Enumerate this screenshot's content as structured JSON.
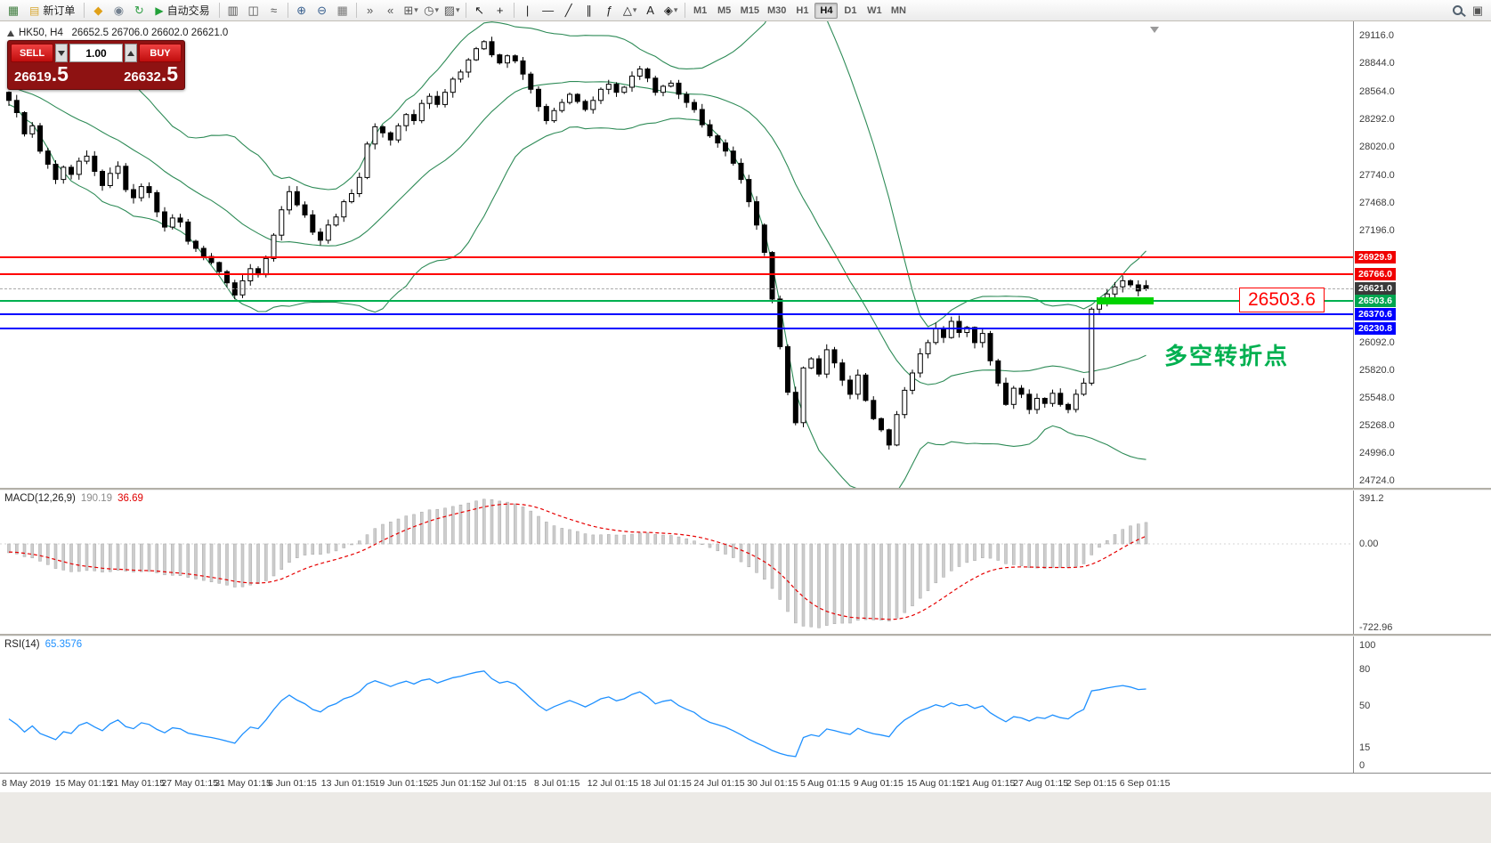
{
  "toolbar": {
    "caret_glyph": "▾",
    "active_timeframe": "H4",
    "items": [
      {
        "t": "icon",
        "name": "chart-window-icon",
        "g": "▦",
        "c": "#3f7d3f"
      },
      {
        "t": "button",
        "name": "new-order-button",
        "icon": "new-order-icon",
        "g": "▤",
        "gc": "#d7a52e",
        "label": "新订单"
      },
      {
        "t": "sep"
      },
      {
        "t": "icon",
        "name": "market-depth-icon",
        "g": "◆",
        "c": "#e0a018"
      },
      {
        "t": "icon",
        "name": "accounts-icon",
        "g": "◉",
        "c": "#73808f"
      },
      {
        "t": "icon",
        "name": "refresh-icon",
        "g": "↻",
        "c": "#2f9e44"
      },
      {
        "t": "button",
        "name": "autotrade-button",
        "icon": "autotrade-play-icon",
        "g": "▶",
        "gc": "#21a038",
        "label": "自动交易"
      },
      {
        "t": "sep"
      },
      {
        "t": "icon",
        "name": "bar-chart-icon",
        "g": "▥",
        "c": "#555555"
      },
      {
        "t": "icon",
        "name": "candlestick-chart-icon",
        "g": "◫",
        "c": "#555555"
      },
      {
        "t": "icon",
        "name": "line-chart-icon",
        "g": "≈",
        "c": "#555555"
      },
      {
        "t": "sep"
      },
      {
        "t": "icon",
        "name": "zoom-in-icon",
        "g": "⊕",
        "c": "#39608f"
      },
      {
        "t": "icon",
        "name": "zoom-out-icon",
        "g": "⊖",
        "c": "#39608f"
      },
      {
        "t": "icon",
        "name": "grid-icon",
        "g": "▦",
        "c": "#777777"
      },
      {
        "t": "sep"
      },
      {
        "t": "icon",
        "name": "auto-scroll-icon",
        "g": "»",
        "c": "#555555"
      },
      {
        "t": "icon",
        "name": "chart-shift-icon",
        "g": "«",
        "c": "#555555"
      },
      {
        "t": "icon",
        "name": "new-chart-icon",
        "g": "⊞",
        "c": "#555555",
        "caret": true
      },
      {
        "t": "icon",
        "name": "profiles-icon",
        "g": "◷",
        "c": "#555555",
        "caret": true
      },
      {
        "t": "icon",
        "name": "templates-icon",
        "g": "▨",
        "c": "#555555",
        "caret": true
      },
      {
        "t": "sep"
      },
      {
        "t": "icon",
        "name": "cursor-icon",
        "g": "↖",
        "c": "#222222"
      },
      {
        "t": "icon",
        "name": "crosshair-icon",
        "g": "+",
        "c": "#222222"
      },
      {
        "t": "sep"
      },
      {
        "t": "icon",
        "name": "vertical-line-icon",
        "g": "|",
        "c": "#222222"
      },
      {
        "t": "icon",
        "name": "horizontal-line-icon",
        "g": "—",
        "c": "#222222"
      },
      {
        "t": "icon",
        "name": "trendline-icon",
        "g": "╱",
        "c": "#222222"
      },
      {
        "t": "icon",
        "name": "equidistant-channel-icon",
        "g": "∥",
        "c": "#222222"
      },
      {
        "t": "icon",
        "name": "fibonacci-icon",
        "g": "ƒ",
        "c": "#222222"
      },
      {
        "t": "icon",
        "name": "shapes-icon",
        "g": "△",
        "c": "#222222",
        "caret": true
      },
      {
        "t": "icon",
        "name": "text-label-icon",
        "g": "A",
        "c": "#222222"
      },
      {
        "t": "icon",
        "name": "arrow-objects-icon",
        "g": "◈",
        "c": "#222222",
        "caret": true
      },
      {
        "t": "sep"
      },
      {
        "t": "tf",
        "label": "M1"
      },
      {
        "t": "tf",
        "label": "M5"
      },
      {
        "t": "tf",
        "label": "M15"
      },
      {
        "t": "tf",
        "label": "M30"
      },
      {
        "t": "tf",
        "label": "H1"
      },
      {
        "t": "tf",
        "label": "H4"
      },
      {
        "t": "tf",
        "label": "D1"
      },
      {
        "t": "tf",
        "label": "W1"
      },
      {
        "t": "tf",
        "label": "MN"
      },
      {
        "t": "spacer"
      },
      {
        "t": "search",
        "name": "search-icon"
      },
      {
        "t": "icon",
        "name": "help-icon",
        "g": "▣",
        "c": "#555555"
      }
    ]
  },
  "chart": {
    "header": "HK50, H4   26652.5 26706.0 26602.0 26621.0"
  },
  "trade_panel": {
    "sell_label": "SELL",
    "buy_label": "BUY",
    "volume": "1.00",
    "sell_price_main": "26619",
    "sell_price_frac": ".5",
    "buy_price_main": "26632",
    "buy_price_frac": ".5"
  },
  "annotations": {
    "price_callout": "26503.6",
    "turning_point": "多空转折点"
  },
  "price_scale_ticks": [
    "29116.0",
    "28844.0",
    "28564.0",
    "28292.0",
    "28020.0",
    "27740.0",
    "27468.0",
    "27196.0",
    "26092.0",
    "25820.0",
    "25548.0",
    "25268.0",
    "24996.0",
    "24724.0"
  ],
  "level_labels": [
    {
      "text": "26929.9",
      "bg": "#f00000"
    },
    {
      "text": "26766.0",
      "bg": "#f00000"
    },
    {
      "text": "26621.0",
      "bg": "#3a3a3a"
    },
    {
      "text": "26503.6",
      "bg": "#00a650"
    },
    {
      "text": "26370.6",
      "bg": "#0000ff"
    },
    {
      "text": "26230.8",
      "bg": "#0000ff"
    }
  ],
  "macd": {
    "name": "MACD(12,26,9)",
    "main": "190.19",
    "signal": "36.69",
    "scale": [
      "391.2",
      "0.00",
      "-722.96"
    ]
  },
  "rsi": {
    "name": "RSI(14)",
    "value": "65.3576",
    "scale": [
      "100",
      "80",
      "50",
      "15",
      "0"
    ]
  },
  "time_axis": [
    "8 May 2019",
    "15 May 01:15",
    "21 May 01:15",
    "27 May 01:15",
    "31 May 01:15",
    "6 Jun 01:15",
    "13 Jun 01:15",
    "19 Jun 01:15",
    "25 Jun 01:15",
    "2 Jul 01:15",
    "8 Jul 01:15",
    "12 Jul 01:15",
    "18 Jul 01:15",
    "24 Jul 01:15",
    "30 Jul 01:15",
    "5 Aug 01:15",
    "9 Aug 01:15",
    "15 Aug 01:15",
    "21 Aug 01:15",
    "27 Aug 01:15",
    "2 Sep 01:15",
    "6 Sep 01:15"
  ],
  "chart_data": {
    "type": "candlestick",
    "symbol": "HK50",
    "timeframe": "H4",
    "ohlc": {
      "open": 26652.5,
      "high": 26706.0,
      "low": 26602.0,
      "close": 26621.0
    },
    "price_axis_range": [
      24724.0,
      29116.0
    ],
    "closes": [
      28480,
      28360,
      28150,
      28230,
      27980,
      27850,
      27700,
      27820,
      27750,
      27880,
      27930,
      27780,
      27640,
      27760,
      27830,
      27600,
      27520,
      27630,
      27570,
      27380,
      27230,
      27320,
      27280,
      27090,
      27020,
      26940,
      26880,
      26790,
      26680,
      26560,
      26700,
      26820,
      26760,
      26920,
      27150,
      27400,
      27580,
      27450,
      27350,
      27180,
      27100,
      27250,
      27330,
      27480,
      27560,
      27720,
      28050,
      28220,
      28160,
      28090,
      28230,
      28340,
      28280,
      28450,
      28520,
      28440,
      28560,
      28690,
      28760,
      28880,
      28990,
      29060,
      28930,
      28850,
      28920,
      28870,
      28740,
      28590,
      28420,
      28280,
      28380,
      28460,
      28540,
      28470,
      28390,
      28480,
      28590,
      28640,
      28560,
      28610,
      28720,
      28790,
      28700,
      28560,
      28620,
      28650,
      28540,
      28460,
      28390,
      28240,
      28130,
      28060,
      27980,
      27860,
      27700,
      27480,
      27250,
      26980,
      26520,
      26050,
      25600,
      25300,
      25840,
      25930,
      25780,
      26020,
      25890,
      25720,
      25580,
      25770,
      25520,
      25340,
      25230,
      25080,
      25380,
      25620,
      25790,
      25980,
      26090,
      26230,
      26140,
      26300,
      26190,
      26240,
      26090,
      26180,
      25910,
      25690,
      25480,
      25640,
      25580,
      25430,
      25540,
      25490,
      25590,
      25480,
      25430,
      25580,
      25690,
      26420,
      26480,
      26570,
      26640,
      26700,
      26660,
      26600,
      26621
    ],
    "indicators": {
      "bollinger": {
        "period": 20,
        "deviation": 2,
        "color": "#2e8b57"
      },
      "macd": {
        "fast": 12,
        "slow": 26,
        "signal": 9,
        "main_value": 190.19,
        "signal_value": 36.69,
        "range": [
          -722.96,
          391.2
        ]
      },
      "rsi": {
        "period": 14,
        "value": 65.3576
      }
    },
    "levels": [
      {
        "price": 26929.9,
        "color": "#ff0000",
        "style": "solid",
        "width": 2
      },
      {
        "price": 26766.0,
        "color": "#ff0000",
        "style": "solid",
        "width": 2
      },
      {
        "price": 26621.0,
        "color": "#aaaaaa",
        "style": "dashed",
        "width": 1
      },
      {
        "price": 26503.6,
        "color": "#00b050",
        "style": "solid",
        "width": 2
      },
      {
        "price": 26370.6,
        "color": "#0000ff",
        "style": "solid",
        "width": 2
      },
      {
        "price": 26230.8,
        "color": "#0000ff",
        "style": "solid",
        "width": 2
      }
    ],
    "highlight_zone": {
      "price": 26503.6,
      "color": "#00d300"
    }
  }
}
